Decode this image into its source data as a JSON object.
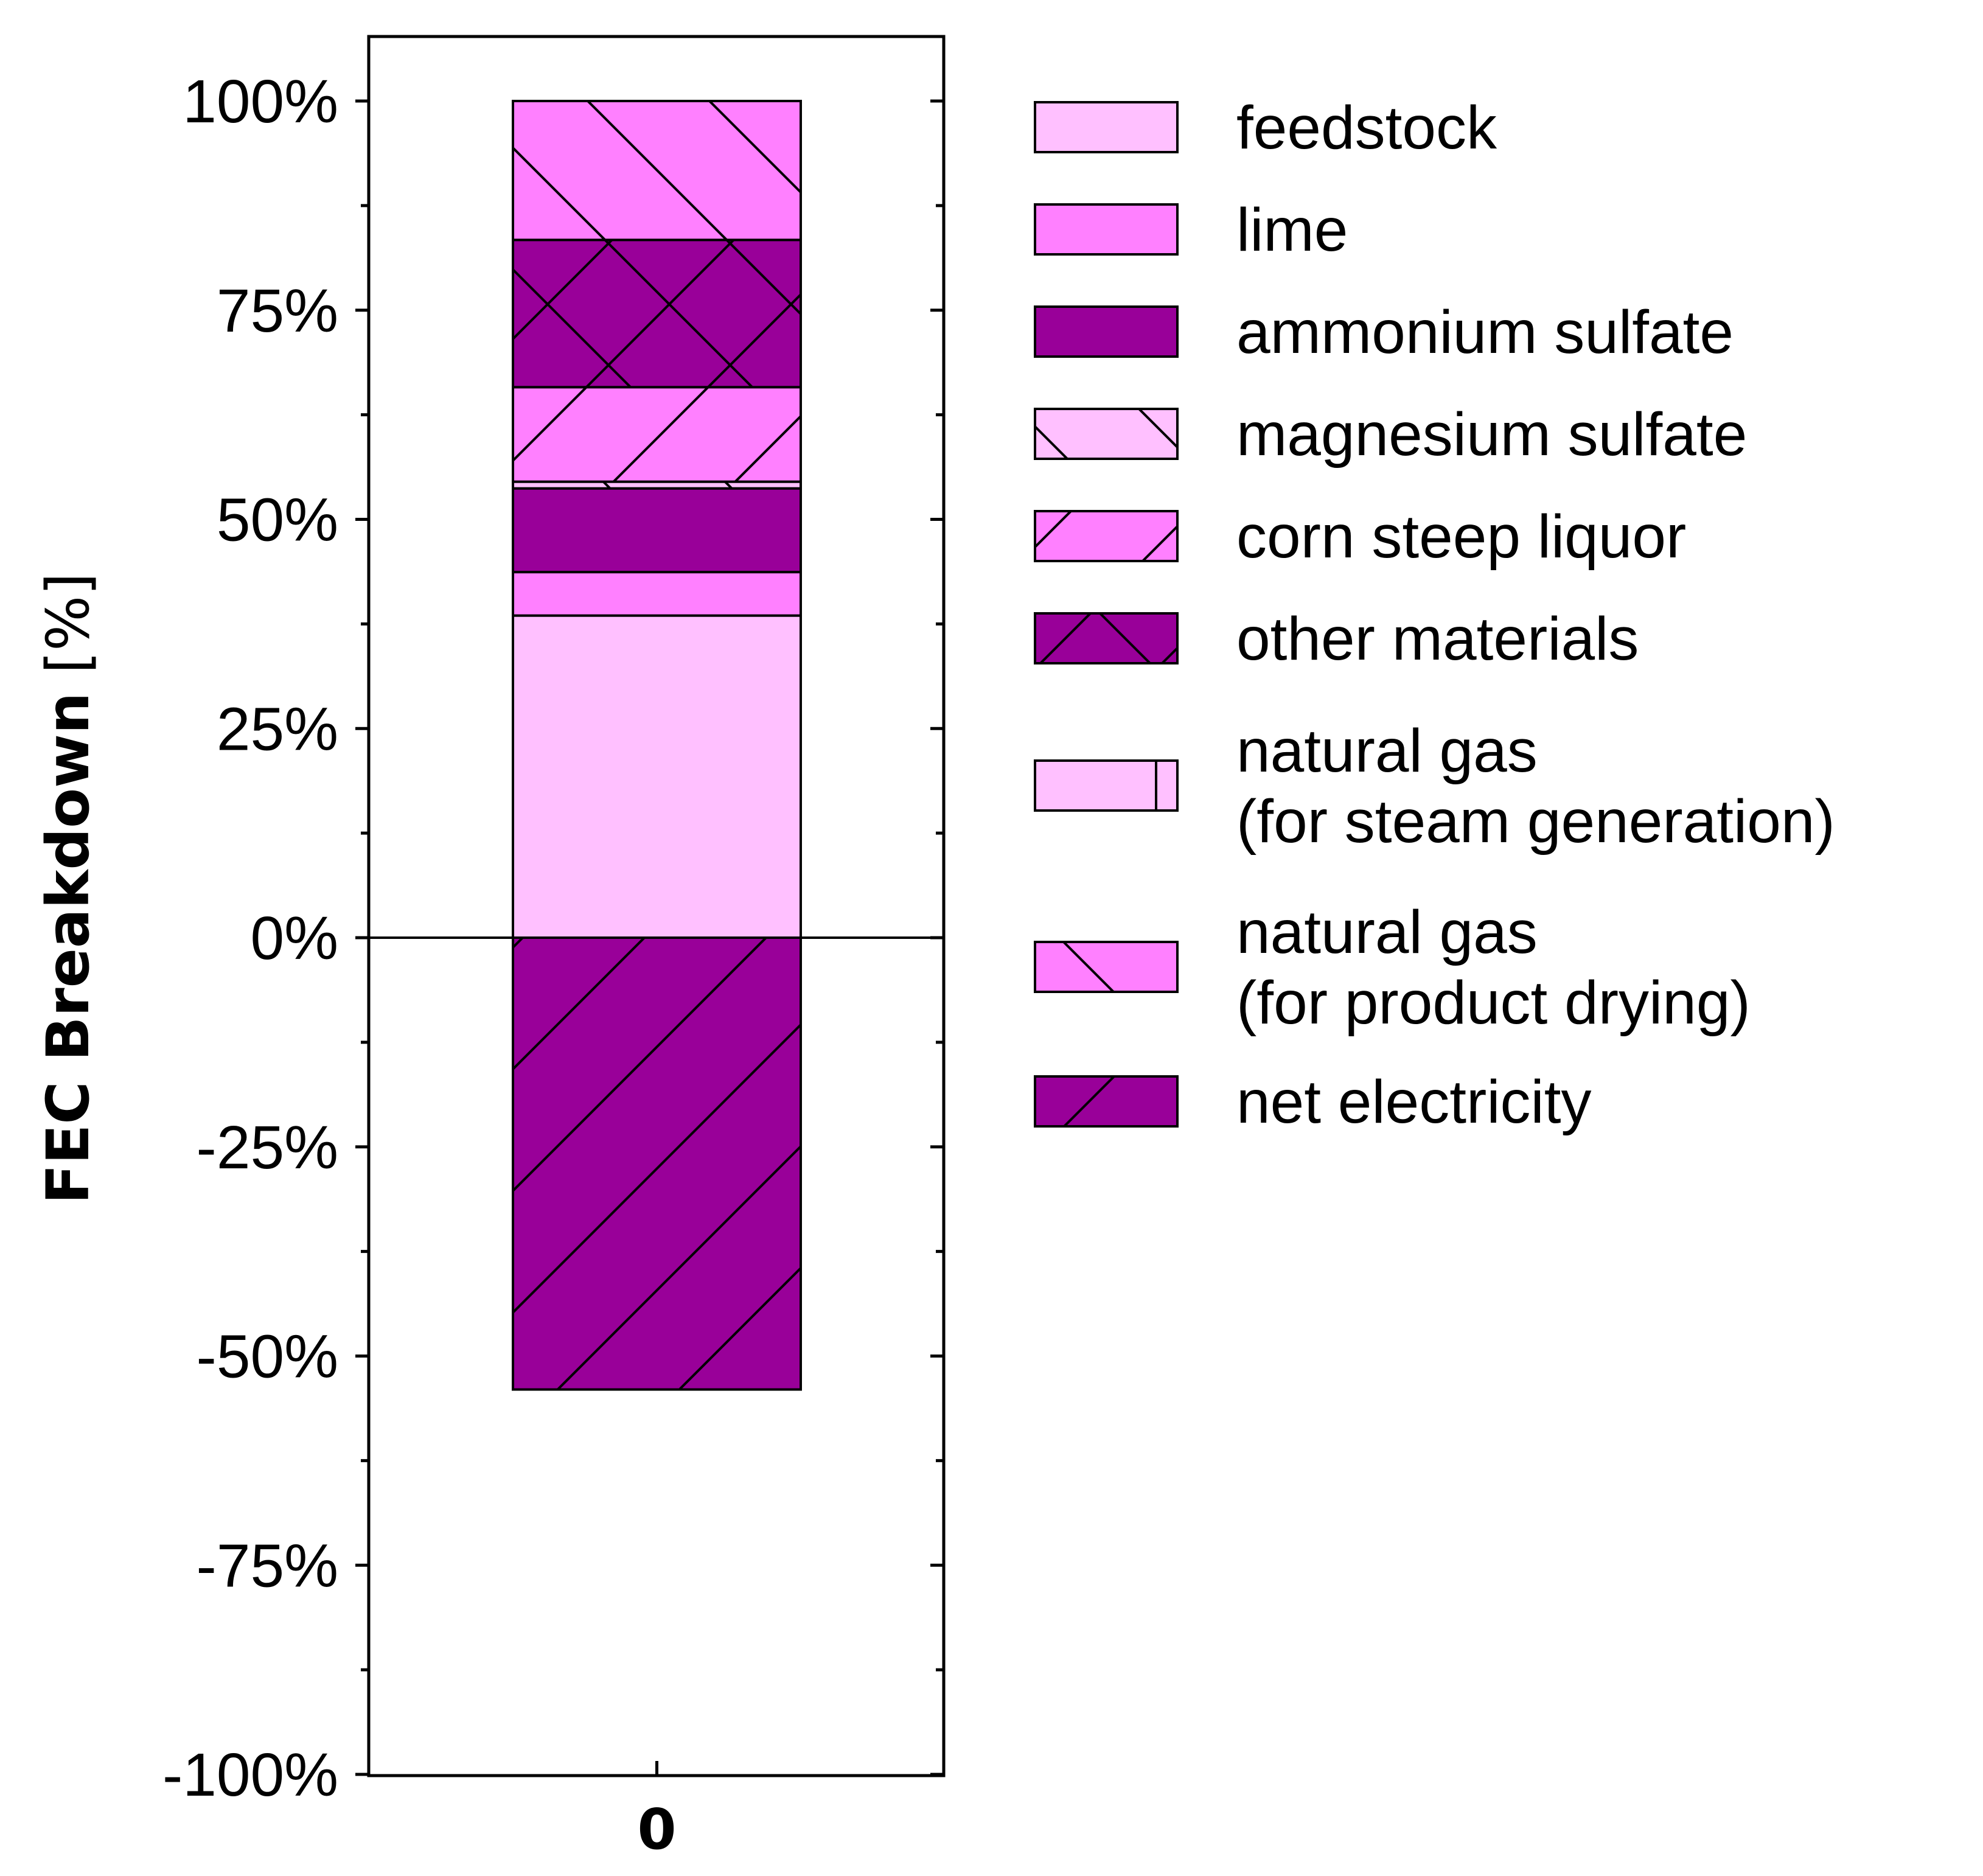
{
  "chart_data": {
    "type": "bar",
    "stacked": true,
    "categories": [
      "0"
    ],
    "ylabel_bold": "FEC Breakdown",
    "ylabel_unit": "[%]",
    "xlabel": "",
    "ylim": [
      -100,
      100
    ],
    "yticks": [
      100,
      75,
      50,
      25,
      0,
      -25,
      -50,
      -75,
      -100
    ],
    "ytick_labels": [
      "100%",
      "75%",
      "50%",
      "25%",
      "0%",
      "-25%",
      "-50%",
      "-75%",
      "-100%"
    ],
    "grid": false,
    "legend_position": "right",
    "series": [
      {
        "name": "feedstock",
        "values": [
          38.5
        ],
        "color": "#FFC0FF",
        "hatch": "none"
      },
      {
        "name": "lime",
        "values": [
          5.2
        ],
        "color": "#FF80FF",
        "hatch": "none"
      },
      {
        "name": "ammonium sulfate",
        "values": [
          10.0
        ],
        "color": "#990099",
        "hatch": "none"
      },
      {
        "name": "magnesium sulfate",
        "values": [
          0.8
        ],
        "color": "#FFC0FF",
        "hatch": "backslash"
      },
      {
        "name": "corn steep liquor",
        "values": [
          11.3
        ],
        "color": "#FF80FF",
        "hatch": "slash"
      },
      {
        "name": "other materials",
        "values": [
          17.6
        ],
        "color": "#990099",
        "hatch": "cross"
      },
      {
        "name": "natural gas\n(for steam generation)",
        "values": [
          0.0
        ],
        "color": "#FFC0FF",
        "hatch": "vertical"
      },
      {
        "name": "natural gas\n(for product drying)",
        "values": [
          16.6
        ],
        "color": "#FF80FF",
        "hatch": "backslash"
      },
      {
        "name": "net electricity",
        "values": [
          -54.0
        ],
        "color": "#990099",
        "hatch": "slash"
      }
    ]
  }
}
